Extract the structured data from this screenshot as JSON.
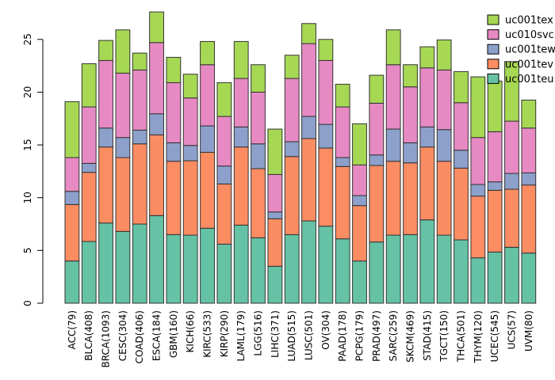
{
  "chart_data": {
    "type": "bar",
    "stacked": true,
    "title": "",
    "xlabel": "",
    "ylabel": "",
    "grid": false,
    "background": "#ffffff",
    "bar_border_color": "#333333",
    "axis_color": "#000000",
    "yticks": [
      0,
      5,
      10,
      15,
      20,
      25
    ],
    "ylim": [
      0,
      27.9
    ],
    "categories": [
      "ACC(79)",
      "BLCA(408)",
      "BRCA(1093)",
      "CESC(304)",
      "COAD(406)",
      "ESCA(184)",
      "GBM(160)",
      "KICH(66)",
      "KIRC(533)",
      "KIRP(290)",
      "LAML(179)",
      "LGG(516)",
      "LIHC(371)",
      "LUAD(515)",
      "LUSC(501)",
      "OV(304)",
      "PAAD(178)",
      "PCPG(179)",
      "PRAD(497)",
      "SARC(259)",
      "SKCM(469)",
      "STAD(415)",
      "TGCT(150)",
      "THCA(501)",
      "THYM(120)",
      "UCEC(545)",
      "UCS(57)",
      "UVM(80)"
    ],
    "series": [
      {
        "name": "uc001teu",
        "color": "#66C2A5",
        "values": [
          4.0,
          5.85,
          7.6,
          6.8,
          7.5,
          8.3,
          6.5,
          6.45,
          7.1,
          5.6,
          7.4,
          6.2,
          3.5,
          6.5,
          7.8,
          7.3,
          6.1,
          4.0,
          5.8,
          6.45,
          6.5,
          7.9,
          6.45,
          6.0,
          4.3,
          4.85,
          5.3,
          4.75
        ]
      },
      {
        "name": "uc001tev",
        "color": "#FC8D62",
        "values": [
          5.35,
          6.55,
          7.2,
          7.0,
          7.6,
          7.65,
          6.95,
          7.05,
          7.2,
          5.7,
          7.4,
          6.55,
          4.5,
          7.4,
          7.8,
          7.4,
          6.85,
          5.25,
          7.25,
          7.0,
          6.8,
          6.9,
          7.0,
          6.8,
          5.85,
          5.85,
          5.5,
          6.45
        ]
      },
      {
        "name": "uc001tew",
        "color": "#8DA0CB",
        "values": [
          1.25,
          0.85,
          1.8,
          1.9,
          1.3,
          2.0,
          1.75,
          1.45,
          2.5,
          1.7,
          1.9,
          2.35,
          0.65,
          1.4,
          2.1,
          2.25,
          0.85,
          0.95,
          1.0,
          3.05,
          1.9,
          1.9,
          3.0,
          1.7,
          1.1,
          0.8,
          1.5,
          1.15
        ]
      },
      {
        "name": "uc010svc",
        "color": "#E78AC3",
        "values": [
          3.2,
          5.35,
          6.4,
          6.1,
          5.7,
          6.75,
          5.7,
          4.5,
          5.8,
          4.7,
          4.6,
          4.9,
          3.55,
          6.0,
          6.9,
          6.05,
          4.8,
          2.9,
          4.9,
          6.1,
          5.3,
          5.6,
          5.65,
          4.5,
          4.45,
          4.75,
          4.95,
          4.25
        ]
      },
      {
        "name": "uc001tex",
        "color": "#A6D854",
        "values": [
          5.3,
          4.1,
          1.9,
          4.1,
          1.6,
          2.9,
          2.4,
          2.25,
          2.2,
          3.2,
          3.5,
          2.6,
          4.3,
          2.2,
          1.9,
          2.0,
          2.15,
          3.9,
          2.65,
          3.3,
          2.1,
          2.0,
          2.85,
          2.95,
          5.75,
          4.8,
          5.65,
          2.65
        ]
      }
    ],
    "legend": {
      "position": "top-right",
      "entries": [
        {
          "label": "uc001tex",
          "color": "#A6D854"
        },
        {
          "label": "uc010svc",
          "color": "#E78AC3"
        },
        {
          "label": "uc001tew",
          "color": "#8DA0CB"
        },
        {
          "label": "uc001tev",
          "color": "#FC8D62"
        },
        {
          "label": "uc001teu",
          "color": "#66C2A5"
        }
      ]
    }
  }
}
